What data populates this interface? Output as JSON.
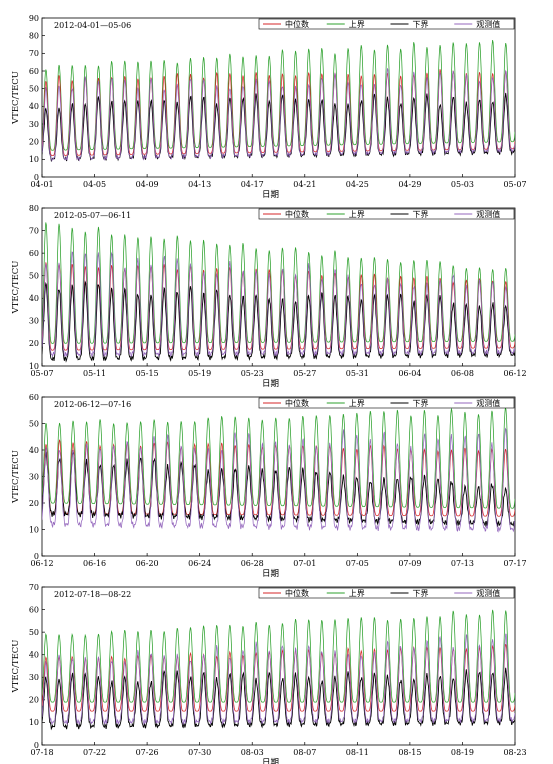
{
  "chart_data": [
    {
      "type": "line",
      "period_label": "2012-04-01—05-06",
      "xlabel": "日期",
      "ylabel": "VTEC/TECU",
      "ylim": [
        0,
        90
      ],
      "yticks": [
        0,
        10,
        20,
        30,
        40,
        50,
        60,
        70,
        80,
        90
      ],
      "xticks": [
        "04-01",
        "04-05",
        "04-09",
        "04-13",
        "04-17",
        "04-21",
        "04-25",
        "04-29",
        "05-03",
        "05-07"
      ],
      "days": 36,
      "legend": [
        "中位数",
        "上界",
        "下界",
        "观测值"
      ],
      "legend_position": "top-right",
      "series_colors": [
        "#d62728",
        "#2ca02c",
        "#000000",
        "#9467bd"
      ],
      "series": [
        {
          "name": "中位数",
          "peak_start": 56,
          "peak_end": 60,
          "trough_start": 12,
          "trough_end": 16
        },
        {
          "name": "上界",
          "peak_start": 62,
          "peak_end": 78,
          "trough_start": 15,
          "trough_end": 20
        },
        {
          "name": "下界",
          "peak_start": 42,
          "peak_end": 45,
          "trough_start": 10,
          "trough_end": 14
        },
        {
          "name": "观测值",
          "peak_start": 52,
          "peak_end": 58,
          "trough_start": 10,
          "trough_end": 15
        }
      ]
    },
    {
      "type": "line",
      "period_label": "2012-05-07—06-11",
      "xlabel": "日期",
      "ylabel": "VTEC/TECU",
      "ylim": [
        10,
        80
      ],
      "yticks": [
        10,
        20,
        30,
        40,
        50,
        60,
        70,
        80
      ],
      "xticks": [
        "05-07",
        "05-11",
        "05-15",
        "05-19",
        "05-23",
        "05-27",
        "05-31",
        "06-04",
        "06-08",
        "06-12"
      ],
      "days": 36,
      "legend": [
        "中位数",
        "上界",
        "下界",
        "观测值"
      ],
      "legend_position": "top-right",
      "series_colors": [
        "#d62728",
        "#2ca02c",
        "#000000",
        "#9467bd"
      ],
      "series": [
        {
          "name": "中位数",
          "peak_start": 56,
          "peak_end": 47,
          "trough_start": 17,
          "trough_end": 18
        },
        {
          "name": "上界",
          "peak_start": 73,
          "peak_end": 52,
          "trough_start": 20,
          "trough_end": 21
        },
        {
          "name": "下界",
          "peak_start": 45,
          "peak_end": 38,
          "trough_start": 13,
          "trough_end": 15
        },
        {
          "name": "观测值",
          "peak_start": 58,
          "peak_end": 46,
          "trough_start": 15,
          "trough_end": 16
        }
      ]
    },
    {
      "type": "line",
      "period_label": "2012-06-12—07-16",
      "xlabel": "日期",
      "ylabel": "VTEC/TECU",
      "ylim": [
        0,
        60
      ],
      "yticks": [
        0,
        10,
        20,
        30,
        40,
        50,
        60
      ],
      "xticks": [
        "06-12",
        "06-16",
        "06-20",
        "06-24",
        "06-28",
        "07-01",
        "07-05",
        "07-09",
        "07-13",
        "07-17"
      ],
      "days": 35,
      "legend": [
        "中位数",
        "上界",
        "下界",
        "观测值"
      ],
      "legend_position": "top-right",
      "series_colors": [
        "#d62728",
        "#2ca02c",
        "#000000",
        "#9467bd"
      ],
      "series": [
        {
          "name": "中位数",
          "peak_start": 43,
          "peak_end": 40,
          "trough_start": 16,
          "trough_end": 15
        },
        {
          "name": "上界",
          "peak_start": 50,
          "peak_end": 55,
          "trough_start": 20,
          "trough_end": 18
        },
        {
          "name": "下界",
          "peak_start": 38,
          "peak_end": 26,
          "trough_start": 16,
          "trough_end": 12
        },
        {
          "name": "观测值",
          "peak_start": 42,
          "peak_end": 45,
          "trough_start": 12,
          "trough_end": 10
        }
      ]
    },
    {
      "type": "line",
      "period_label": "2012-07-18—08-22",
      "xlabel": "日期",
      "ylabel": "VTEC/TECU",
      "ylim": [
        0,
        70
      ],
      "yticks": [
        0,
        10,
        20,
        30,
        40,
        50,
        60,
        70
      ],
      "xticks": [
        "07-18",
        "07-22",
        "07-26",
        "07-30",
        "08-03",
        "08-07",
        "08-11",
        "08-15",
        "08-19",
        "08-23"
      ],
      "days": 36,
      "legend": [
        "中位数",
        "上界",
        "下界",
        "观测值"
      ],
      "legend_position": "top-right",
      "series_colors": [
        "#d62728",
        "#2ca02c",
        "#000000",
        "#9467bd"
      ],
      "series": [
        {
          "name": "中位数",
          "peak_start": 38,
          "peak_end": 44,
          "trough_start": 15,
          "trough_end": 15
        },
        {
          "name": "上界",
          "peak_start": 48,
          "peak_end": 60,
          "trough_start": 19,
          "trough_end": 19
        },
        {
          "name": "下界",
          "peak_start": 30,
          "peak_end": 31,
          "trough_start": 8,
          "trough_end": 10
        },
        {
          "name": "观测值",
          "peak_start": 38,
          "peak_end": 46,
          "trough_start": 10,
          "trough_end": 11
        }
      ]
    }
  ]
}
